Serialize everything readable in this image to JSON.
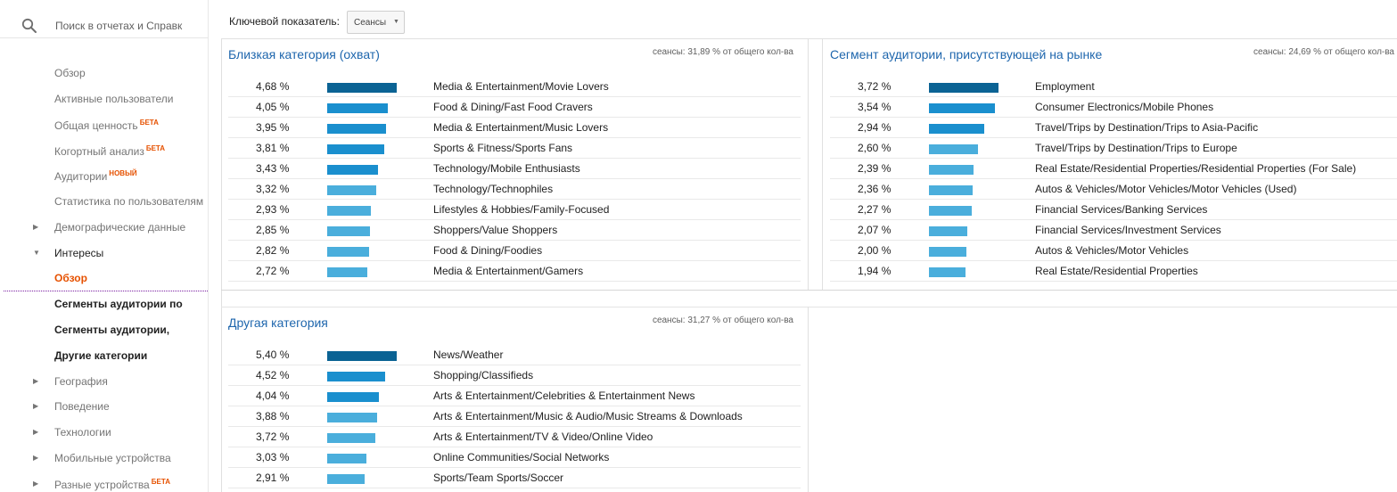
{
  "search": {
    "placeholder": "Поиск в отчетах и Справк",
    "icon": "search-icon"
  },
  "nav": {
    "items": [
      {
        "label": "Обзор",
        "state": "normal"
      },
      {
        "label": "Активные пользователи",
        "state": "normal"
      },
      {
        "label": "Общая ценность",
        "badge": "БЕТА",
        "state": "normal"
      },
      {
        "label": "Когортный анализ",
        "badge": "БЕТА",
        "state": "normal"
      },
      {
        "label": "Аудитории",
        "badge": "НОВЫЙ",
        "state": "normal"
      },
      {
        "label": "Статистика по пользователям",
        "state": "normal"
      },
      {
        "label": "Демографические данные",
        "state": "collapsed"
      },
      {
        "label": "Интересы",
        "state": "expanded"
      },
      {
        "label": "Обзор",
        "state": "active"
      },
      {
        "label": "Сегменты аудитории по",
        "state": "sub"
      },
      {
        "label": "Сегменты аудитории,",
        "state": "sub"
      },
      {
        "label": "Другие категории",
        "state": "sub"
      },
      {
        "label": "География",
        "state": "collapsed"
      },
      {
        "label": "Поведение",
        "state": "collapsed"
      },
      {
        "label": "Технологии",
        "state": "collapsed"
      },
      {
        "label": "Мобильные устройства",
        "state": "collapsed"
      },
      {
        "label": "Разные устройства",
        "badge": "БЕТА",
        "state": "collapsed"
      }
    ]
  },
  "toolbar": {
    "label": "Ключевой показатель:",
    "metric_value": "Сеансы"
  },
  "colors": {
    "bar_dark": "#0b6394",
    "bar_mid": "#1a8fce",
    "bar_light": "#4aaedc",
    "title": "#1e66ad",
    "accent": "#e65100"
  },
  "panels": {
    "affinity": {
      "title": "Близкая категория (охват)",
      "note": "сеансы: 31,89 % от общего кол-ва",
      "rows": [
        {
          "pct": "4,68 %",
          "value": 4.68,
          "cat": "Media & Entertainment/Movie Lovers"
        },
        {
          "pct": "4,05 %",
          "value": 4.05,
          "cat": "Food & Dining/Fast Food Cravers"
        },
        {
          "pct": "3,95 %",
          "value": 3.95,
          "cat": "Media & Entertainment/Music Lovers"
        },
        {
          "pct": "3,81 %",
          "value": 3.81,
          "cat": "Sports & Fitness/Sports Fans"
        },
        {
          "pct": "3,43 %",
          "value": 3.43,
          "cat": "Technology/Mobile Enthusiasts"
        },
        {
          "pct": "3,32 %",
          "value": 3.32,
          "cat": "Technology/Technophiles"
        },
        {
          "pct": "2,93 %",
          "value": 2.93,
          "cat": "Lifestyles & Hobbies/Family-Focused"
        },
        {
          "pct": "2,85 %",
          "value": 2.85,
          "cat": "Shoppers/Value Shoppers"
        },
        {
          "pct": "2,82 %",
          "value": 2.82,
          "cat": "Food & Dining/Foodies"
        },
        {
          "pct": "2,72 %",
          "value": 2.72,
          "cat": "Media & Entertainment/Gamers"
        }
      ]
    },
    "in_market": {
      "title": "Сегмент аудитории, присутствующей на рынке",
      "note": "сеансы: 24,69 % от общего кол-ва",
      "rows": [
        {
          "pct": "3,72 %",
          "value": 3.72,
          "cat": "Employment"
        },
        {
          "pct": "3,54 %",
          "value": 3.54,
          "cat": "Consumer Electronics/Mobile Phones"
        },
        {
          "pct": "2,94 %",
          "value": 2.94,
          "cat": "Travel/Trips by Destination/Trips to Asia-Pacific"
        },
        {
          "pct": "2,60 %",
          "value": 2.6,
          "cat": "Travel/Trips by Destination/Trips to Europe"
        },
        {
          "pct": "2,39 %",
          "value": 2.39,
          "cat": "Real Estate/Residential Properties/Residential Properties (For Sale)"
        },
        {
          "pct": "2,36 %",
          "value": 2.36,
          "cat": "Autos & Vehicles/Motor Vehicles/Motor Vehicles (Used)"
        },
        {
          "pct": "2,27 %",
          "value": 2.27,
          "cat": "Financial Services/Banking Services"
        },
        {
          "pct": "2,07 %",
          "value": 2.07,
          "cat": "Financial Services/Investment Services"
        },
        {
          "pct": "2,00 %",
          "value": 2.0,
          "cat": "Autos & Vehicles/Motor Vehicles"
        },
        {
          "pct": "1,94 %",
          "value": 1.94,
          "cat": "Real Estate/Residential Properties"
        }
      ]
    },
    "other": {
      "title": "Другая категория",
      "note": "сеансы: 31,27 % от общего кол-ва",
      "rows": [
        {
          "pct": "5,40 %",
          "value": 5.4,
          "cat": "News/Weather"
        },
        {
          "pct": "4,52 %",
          "value": 4.52,
          "cat": "Shopping/Classifieds"
        },
        {
          "pct": "4,04 %",
          "value": 4.04,
          "cat": "Arts & Entertainment/Celebrities & Entertainment News"
        },
        {
          "pct": "3,88 %",
          "value": 3.88,
          "cat": "Arts & Entertainment/Music & Audio/Music Streams & Downloads"
        },
        {
          "pct": "3,72 %",
          "value": 3.72,
          "cat": "Arts & Entertainment/TV & Video/Online Video"
        },
        {
          "pct": "3,03 %",
          "value": 3.03,
          "cat": "Online Communities/Social Networks"
        },
        {
          "pct": "2,91 %",
          "value": 2.91,
          "cat": "Sports/Team Sports/Soccer"
        }
      ]
    }
  }
}
